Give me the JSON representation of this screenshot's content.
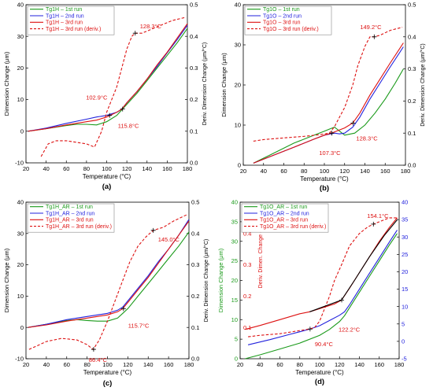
{
  "chart_data": [
    {
      "id": "a",
      "type": "line",
      "caption": "(a)",
      "xlabel": "Temperature (°C)",
      "ylabel_left": "Dimension Change (μm)",
      "ylabel_right": "Deriv. Dimension Change (μm/°C)",
      "xlim": [
        20,
        180
      ],
      "xticks": [
        20,
        40,
        60,
        80,
        100,
        120,
        140,
        160,
        180
      ],
      "ylim_left": [
        -10,
        40
      ],
      "yticks_left": [
        -10,
        0,
        10,
        20,
        30,
        40
      ],
      "ylim_right": [
        0.0,
        0.5
      ],
      "yticks_right": [
        "0.0",
        "0.1",
        "0.2",
        "0.3",
        "0.4",
        "0.5"
      ],
      "legend": {
        "placement": "top-left"
      },
      "series": [
        {
          "name": "Tg1H – 1st run",
          "color": "#1a9a1a",
          "dash": "solid",
          "axis": "left",
          "x": [
            22,
            40,
            60,
            70,
            80,
            90,
            100,
            110,
            120,
            130,
            140,
            150,
            160,
            170,
            180
          ],
          "y": [
            0,
            0.8,
            1.8,
            2.2,
            2.2,
            2.0,
            3.0,
            5.0,
            8.5,
            12.0,
            16.0,
            20.0,
            24.0,
            28.0,
            32.5
          ]
        },
        {
          "name": "Tg1H – 2nd run",
          "color": "#2222dd",
          "dash": "solid",
          "axis": "left",
          "x": [
            22,
            40,
            60,
            80,
            90,
            100,
            110,
            115,
            120,
            130,
            140,
            150,
            160,
            170,
            180
          ],
          "y": [
            0,
            1.0,
            2.5,
            3.8,
            4.5,
            5.0,
            6.0,
            7.0,
            9.0,
            12.5,
            16.5,
            20.5,
            24.8,
            29.0,
            33.5
          ]
        },
        {
          "name": "Tg1H – 3rd run",
          "color": "#dd1111",
          "dash": "solid",
          "axis": "left",
          "x": [
            22,
            40,
            60,
            80,
            90,
            100,
            110,
            115,
            120,
            130,
            140,
            150,
            160,
            170,
            180
          ],
          "y": [
            0,
            0.8,
            2.0,
            3.0,
            3.5,
            4.5,
            6.0,
            7.0,
            9.0,
            12.5,
            16.5,
            21.0,
            25.0,
            29.5,
            34.0
          ]
        },
        {
          "name": "Tg1H – 3rd run (deriv.)",
          "color": "#dd1111",
          "dash": "dashed",
          "axis": "right",
          "x": [
            35,
            42,
            50,
            60,
            70,
            80,
            88,
            95,
            100,
            105,
            110,
            115,
            120,
            125,
            128,
            135,
            150,
            165,
            178
          ],
          "y": [
            0.02,
            0.06,
            0.07,
            0.07,
            0.065,
            0.06,
            0.05,
            0.1,
            0.16,
            0.2,
            0.24,
            0.3,
            0.36,
            0.4,
            0.41,
            0.41,
            0.43,
            0.45,
            0.46
          ]
        }
      ],
      "annotations": [
        {
          "text": "128.3°C",
          "x": 128.3,
          "y": 0.41,
          "axis": "right",
          "label_dx": 6,
          "label_dy": -6
        },
        {
          "text": "102.9°C",
          "x": 102.9,
          "y": 5.0,
          "axis": "left",
          "label_dx": -30,
          "label_dy": -20
        },
        {
          "text": "115.8°C",
          "x": 115.8,
          "y": 7.0,
          "axis": "left",
          "label_dx": -6,
          "label_dy": 24
        }
      ]
    },
    {
      "id": "b",
      "type": "line",
      "caption": "(b)",
      "xlabel": "Temperature (°C)",
      "ylabel_left": "Dimension Change (μm)",
      "ylabel_right": "Deriv. Dimension Change (μm/°C)",
      "xlim": [
        20,
        180
      ],
      "xticks": [
        20,
        40,
        60,
        80,
        100,
        120,
        140,
        160,
        180
      ],
      "ylim_left": [
        0,
        40
      ],
      "yticks_left": [
        0,
        10,
        20,
        30,
        40
      ],
      "ylim_right": [
        0.0,
        0.5
      ],
      "yticks_right": [
        "0.0",
        "0.1",
        "0.2",
        "0.3",
        "0.4",
        "0.5"
      ],
      "legend": {
        "placement": "top-left"
      },
      "series": [
        {
          "name": "Tg1O – 1st run",
          "color": "#1a9a1a",
          "dash": "solid",
          "axis": "left",
          "x": [
            30,
            50,
            70,
            90,
            100,
            105,
            110,
            115,
            120,
            130,
            140,
            150,
            160,
            170,
            178
          ],
          "y": [
            0.5,
            3.0,
            5.5,
            7.5,
            8.5,
            9.0,
            9.5,
            8.5,
            7.5,
            8.0,
            10.0,
            13.0,
            16.5,
            20.5,
            24.0
          ]
        },
        {
          "name": "Tg1O – 2nd run",
          "color": "#2222dd",
          "dash": "solid",
          "axis": "left",
          "x": [
            30,
            50,
            70,
            90,
            100,
            110,
            115,
            120,
            128,
            135,
            145,
            155,
            165,
            178
          ],
          "y": [
            0.5,
            2.5,
            4.5,
            6.5,
            7.5,
            8.0,
            7.8,
            8.0,
            9.5,
            12.0,
            16.5,
            20.5,
            24.5,
            29.5
          ]
        },
        {
          "name": "Tg1O – 3rd run",
          "color": "#dd1111",
          "dash": "solid",
          "axis": "left",
          "x": [
            30,
            50,
            70,
            90,
            100,
            107,
            115,
            120,
            128,
            135,
            145,
            155,
            165,
            178
          ],
          "y": [
            0.5,
            2.5,
            4.5,
            6.5,
            7.5,
            8.0,
            8.8,
            9.3,
            10.5,
            13.0,
            17.5,
            21.5,
            25.5,
            30.5
          ]
        },
        {
          "name": "Tg1O – 3rd run (deriv.)",
          "color": "#dd1111",
          "dash": "dashed",
          "axis": "right",
          "x": [
            30,
            40,
            60,
            80,
            95,
            105,
            110,
            115,
            120,
            128,
            133,
            140,
            145,
            149,
            155,
            165,
            177
          ],
          "y": [
            0.075,
            0.08,
            0.085,
            0.09,
            0.095,
            0.1,
            0.12,
            0.15,
            0.18,
            0.25,
            0.31,
            0.37,
            0.4,
            0.4,
            0.405,
            0.42,
            0.43
          ]
        }
      ],
      "annotations": [
        {
          "text": "149.2°C",
          "x": 149.2,
          "y": 0.4,
          "axis": "right",
          "label_dx": -18,
          "label_dy": -10
        },
        {
          "text": "107.3°C",
          "x": 107.3,
          "y": 8.0,
          "axis": "left",
          "label_dx": -16,
          "label_dy": 28
        },
        {
          "text": "128.3°C",
          "x": 128.3,
          "y": 10.5,
          "axis": "left",
          "label_dx": 4,
          "label_dy": 22
        }
      ]
    },
    {
      "id": "c",
      "type": "line",
      "caption": "(c)",
      "xlabel": "Temperature (°C)",
      "ylabel_left": "Dimension Change (μm)",
      "ylabel_right": "Deriv. Dimension Change (μm/°C)",
      "xlim": [
        20,
        180
      ],
      "xticks": [
        20,
        40,
        60,
        80,
        100,
        120,
        140,
        160,
        180
      ],
      "ylim_left": [
        -10,
        40
      ],
      "yticks_left": [
        -10,
        0,
        10,
        20,
        30,
        40
      ],
      "ylim_right": [
        0.0,
        0.5
      ],
      "yticks_right": [
        "0.0",
        "0.1",
        "0.2",
        "0.3",
        "0.4",
        "0.5"
      ],
      "legend": {
        "placement": "top-left"
      },
      "series": [
        {
          "name": "Tg1H_AR – 1st run",
          "color": "#1a9a1a",
          "dash": "solid",
          "axis": "left",
          "x": [
            22,
            40,
            60,
            70,
            80,
            90,
            100,
            110,
            115,
            120,
            130,
            140,
            150,
            160,
            170,
            180
          ],
          "y": [
            0,
            1.0,
            2.2,
            2.5,
            2.2,
            2.0,
            2.0,
            3.0,
            4.5,
            6.0,
            10.0,
            14.0,
            18.0,
            22.0,
            26.0,
            30.5
          ]
        },
        {
          "name": "Tg1H_AR – 2nd run",
          "color": "#2222dd",
          "dash": "solid",
          "axis": "left",
          "x": [
            22,
            40,
            60,
            80,
            90,
            100,
            110,
            115,
            120,
            130,
            140,
            150,
            160,
            170,
            180
          ],
          "y": [
            0,
            1.0,
            2.5,
            3.5,
            4.0,
            4.5,
            5.5,
            6.5,
            8.5,
            12.5,
            16.5,
            21.0,
            25.0,
            29.5,
            34.5
          ]
        },
        {
          "name": "Tg1H_AR – 3rd run",
          "color": "#dd1111",
          "dash": "solid",
          "axis": "left",
          "x": [
            22,
            40,
            60,
            80,
            90,
            100,
            110,
            115,
            120,
            130,
            140,
            150,
            160,
            170,
            180
          ],
          "y": [
            0,
            0.8,
            2.0,
            3.0,
            3.5,
            4.0,
            5.0,
            6.0,
            8.0,
            12.0,
            16.0,
            20.5,
            25.0,
            29.5,
            34.0
          ]
        },
        {
          "name": "Tg1H_AR – 3rd run (deriv.)",
          "color": "#dd1111",
          "dash": "dashed",
          "axis": "right",
          "x": [
            23,
            30,
            40,
            55,
            70,
            80,
            86,
            92,
            100,
            108,
            115,
            122,
            130,
            138,
            145,
            155,
            165,
            178
          ],
          "y": [
            0.03,
            0.04,
            0.055,
            0.065,
            0.06,
            0.045,
            0.03,
            0.06,
            0.12,
            0.19,
            0.25,
            0.31,
            0.36,
            0.39,
            0.41,
            0.42,
            0.44,
            0.46
          ]
        }
      ],
      "annotations": [
        {
          "text": "145.0°C",
          "x": 145.0,
          "y": 0.41,
          "axis": "right",
          "label_dx": 6,
          "label_dy": 14
        },
        {
          "text": "86.4°C",
          "x": 86.4,
          "y": 0.03,
          "axis": "right",
          "label_dx": -6,
          "label_dy": 16
        },
        {
          "text": "115.7°C",
          "x": 115.7,
          "y": 6.0,
          "axis": "left",
          "label_dx": 6,
          "label_dy": 24
        }
      ]
    },
    {
      "id": "d",
      "type": "line",
      "caption": "(d)",
      "xlabel": "Temperature (°C)",
      "ylabel_left": "Dimension Change (μm)",
      "ylabel_inner": "Deriv. Dimen. Change (μm/°C)",
      "ylabel_right": "",
      "left_axis_color": "#1a9a1a",
      "inner_axis_color": "#dd1111",
      "right_axis_color": "#2222dd",
      "xlim": [
        20,
        180
      ],
      "xticks": [
        20,
        40,
        60,
        80,
        100,
        120,
        140,
        160,
        180
      ],
      "ylim_left": [
        0,
        40
      ],
      "yticks_left": [
        0,
        5,
        10,
        15,
        20,
        25,
        30,
        35,
        40
      ],
      "ylim_inner": [
        0.0,
        0.5
      ],
      "yticks_inner": [
        "0.1",
        "0.2",
        "0.3",
        "0.4"
      ],
      "ylim_right": [
        -5,
        40
      ],
      "yticks_right": [
        -5,
        0,
        5,
        10,
        15,
        20,
        25,
        30,
        35,
        40
      ],
      "legend": {
        "placement": "top-left"
      },
      "series": [
        {
          "name": "Tg1O_AR – 1st run",
          "color": "#1a9a1a",
          "dash": "solid",
          "axis": "left",
          "x": [
            25,
            40,
            60,
            80,
            100,
            110,
            120,
            125,
            130,
            140,
            150,
            160,
            170,
            178
          ],
          "y": [
            0,
            1.0,
            2.5,
            4.0,
            6.0,
            7.5,
            9.5,
            11.0,
            13.0,
            17.0,
            21.0,
            25.0,
            29.0,
            32.0
          ]
        },
        {
          "name": "Tg1O_AR – 2nd run",
          "color": "#2222dd",
          "dash": "solid",
          "axis": "right",
          "x": [
            28,
            50,
            70,
            90,
            100,
            110,
            120,
            125,
            130,
            140,
            150,
            160,
            170,
            178
          ],
          "y": [
            -1.0,
            0.5,
            2.0,
            3.5,
            4.5,
            6.0,
            7.5,
            8.5,
            10.5,
            15.0,
            19.5,
            24.0,
            28.5,
            32.0
          ]
        },
        {
          "name": "Tg1O_AR – 3rd run",
          "color": "#dd1111",
          "dash": "solid",
          "axis": "left",
          "x": [
            25,
            40,
            60,
            80,
            90,
            100,
            110,
            115,
            122,
            130,
            140,
            150,
            160,
            170,
            178
          ],
          "y": [
            7.5,
            8.5,
            10.0,
            11.5,
            12.0,
            12.8,
            13.6,
            14.0,
            15.0,
            18.0,
            22.0,
            26.0,
            30.0,
            33.5,
            36.0
          ]
        },
        {
          "name": "Tg1O_AR – 3rd run (deriv.)",
          "color": "#dd1111",
          "dash": "dashed",
          "axis": "inner",
          "x": [
            28,
            40,
            60,
            80,
            90,
            95,
            100,
            105,
            110,
            115,
            122,
            130,
            140,
            148,
            154,
            162,
            170,
            178
          ],
          "y": [
            0.07,
            0.075,
            0.08,
            0.09,
            0.095,
            0.1,
            0.12,
            0.16,
            0.2,
            0.25,
            0.3,
            0.36,
            0.4,
            0.42,
            0.43,
            0.44,
            0.45,
            0.45
          ]
        },
        {
          "name": "black-fit",
          "color": "#000000",
          "dash": "solid",
          "axis": "left",
          "legend": false,
          "x": [
            90,
            122,
            135,
            150,
            165,
            178
          ],
          "y": [
            12.0,
            15.0,
            20.0,
            26.0,
            31.5,
            35.5
          ]
        }
      ],
      "annotations": [
        {
          "text": "154.1°C",
          "x": 154.1,
          "y": 0.43,
          "axis": "inner",
          "label_dx": -8,
          "label_dy": -8
        },
        {
          "text": "90.4°C",
          "x": 90.4,
          "y": 0.095,
          "axis": "inner",
          "label_dx": 6,
          "label_dy": 22
        },
        {
          "text": "122.2°C",
          "x": 122.2,
          "y": 15.0,
          "axis": "left",
          "label_dx": -4,
          "label_dy": 40
        }
      ]
    }
  ]
}
